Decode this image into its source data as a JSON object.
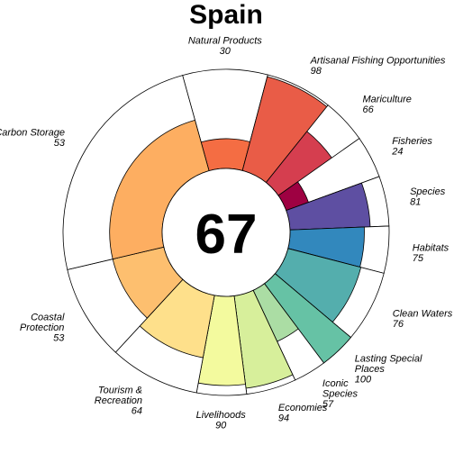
{
  "chart_data": {
    "type": "flower",
    "title": "Spain",
    "overall_score": "67",
    "max_value": 100,
    "petals": [
      {
        "name": "Natural Products",
        "label_lines": [
          "Natural Products"
        ],
        "value": 30,
        "color": "#f46d43"
      },
      {
        "name": "Artisanal Fishing Opportunities",
        "label_lines": [
          "Artisanal Fishing Opportunities"
        ],
        "value": 98,
        "color": "#e95c47"
      },
      {
        "name": "Mariculture",
        "label_lines": [
          "Mariculture"
        ],
        "value": 66,
        "color": "#d53e4f"
      },
      {
        "name": "Fisheries",
        "label_lines": [
          "Fisheries"
        ],
        "value": 24,
        "color": "#9e0142"
      },
      {
        "name": "Species",
        "label_lines": [
          "Species"
        ],
        "value": 81,
        "color": "#5e4fa2"
      },
      {
        "name": "Habitats",
        "label_lines": [
          "Habitats"
        ],
        "value": 75,
        "color": "#3288bd"
      },
      {
        "name": "Clean Waters",
        "label_lines": [
          "Clean Waters"
        ],
        "value": 76,
        "color": "#54aead"
      },
      {
        "name": "Lasting Special Places",
        "label_lines": [
          "Lasting Special",
          "Places"
        ],
        "value": 100,
        "color": "#66c2a5"
      },
      {
        "name": "Iconic Species",
        "label_lines": [
          "Iconic",
          "Species"
        ],
        "value": 57,
        "color": "#abdda4"
      },
      {
        "name": "Economies",
        "label_lines": [
          "Economies"
        ],
        "value": 94,
        "color": "#d7ef9b"
      },
      {
        "name": "Livelihoods",
        "label_lines": [
          "Livelihoods"
        ],
        "value": 90,
        "color": "#f3fa9e"
      },
      {
        "name": "Tourism & Recreation",
        "label_lines": [
          "Tourism &",
          "Recreation"
        ],
        "value": 64,
        "color": "#fee08b"
      },
      {
        "name": "Coastal Protection",
        "label_lines": [
          "Coastal",
          "Protection"
        ],
        "value": 53,
        "color": "#fdbf6f"
      },
      {
        "name": "Carbon Storage",
        "label_lines": [
          "Carbon Storage"
        ],
        "value": 53,
        "color": "#fdae61"
      }
    ]
  }
}
